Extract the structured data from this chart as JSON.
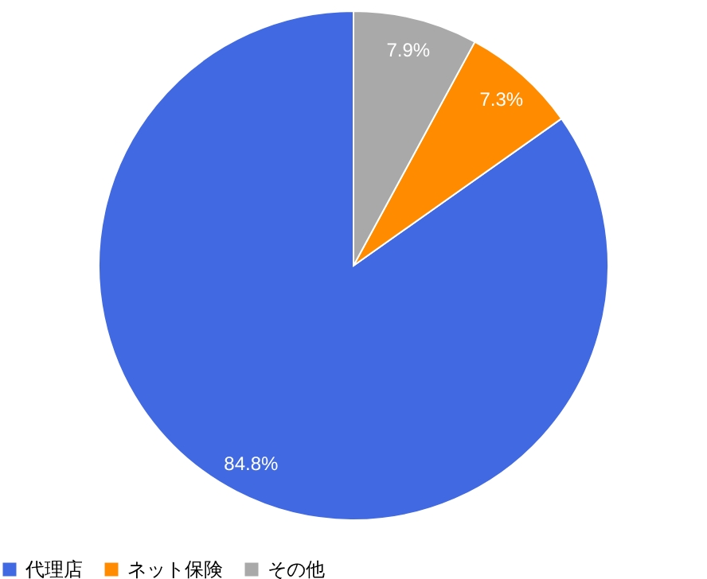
{
  "chart_data": {
    "type": "pie",
    "categories": [
      "代理店",
      "ネット保険",
      "その他"
    ],
    "values": [
      84.8,
      7.3,
      7.9
    ],
    "colors": [
      "#4169e1",
      "#ff8c00",
      "#a9a9a9"
    ],
    "value_labels": [
      "84.8%",
      "7.3%",
      "7.9%"
    ],
    "legend": "bottom"
  }
}
